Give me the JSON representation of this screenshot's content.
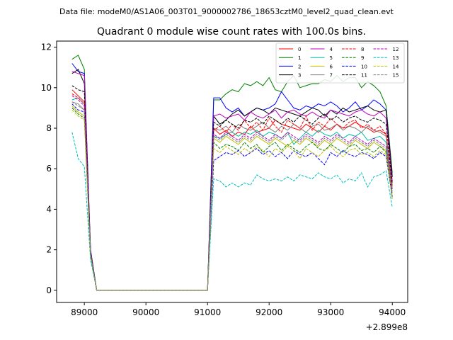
{
  "chart_data": {
    "type": "line",
    "suptitle": "Data file: modeM0/AS1A06_003T01_9000002786_18653cztM0_level2_quad_clean.evt",
    "title": "Quadrant 0 module wise count rates with 100.0s bins.",
    "xlabel": "",
    "ylabel": "",
    "x_offset_label": "+2.899e8",
    "xlim": [
      88550,
      94250
    ],
    "ylim": [
      -0.6,
      12.3
    ],
    "xticks": [
      89000,
      90000,
      91000,
      92000,
      93000,
      94000
    ],
    "yticks": [
      0,
      2,
      4,
      6,
      8,
      10,
      12
    ],
    "grid": false,
    "legend": {
      "placement": "top-right",
      "columns": 4
    },
    "x": [
      88800,
      88900,
      89000,
      89100,
      89200,
      89300,
      89400,
      89500,
      89600,
      89700,
      89800,
      89900,
      90000,
      90100,
      90200,
      90300,
      90400,
      90500,
      90600,
      90700,
      90800,
      90900,
      91000,
      91100,
      91200,
      91300,
      91400,
      91500,
      91600,
      91700,
      91800,
      91900,
      92000,
      92100,
      92200,
      92300,
      92400,
      92500,
      92600,
      92700,
      92800,
      92900,
      93000,
      93100,
      93200,
      93300,
      93400,
      93500,
      93600,
      93700,
      93800,
      93900,
      94000
    ],
    "series": [
      {
        "name": "0",
        "color": "#ff0000",
        "dash": "solid",
        "values": [
          9.9,
          9.6,
          9.3,
          1.8,
          0,
          0,
          0,
          0,
          0,
          0,
          0,
          0,
          0,
          0,
          0,
          0,
          0,
          0,
          0,
          0,
          0,
          0,
          0,
          8.0,
          7.7,
          7.9,
          7.6,
          7.8,
          7.7,
          8.1,
          7.8,
          7.9,
          8.0,
          8.4,
          8.2,
          8.1,
          8.0,
          7.9,
          8.2,
          8.0,
          7.8,
          8.1,
          7.9,
          8.2,
          8.0,
          8.1,
          8.3,
          8.1,
          8.0,
          7.8,
          7.9,
          7.7,
          5.0
        ]
      },
      {
        "name": "1",
        "color": "#008000",
        "dash": "solid",
        "values": [
          11.4,
          11.6,
          10.9,
          2.0,
          0,
          0,
          0,
          0,
          0,
          0,
          0,
          0,
          0,
          0,
          0,
          0,
          0,
          0,
          0,
          0,
          0,
          0,
          0,
          9.4,
          9.4,
          9.7,
          9.9,
          9.8,
          10.2,
          10.1,
          10.3,
          10.1,
          10.5,
          9.9,
          9.8,
          10.3,
          10.6,
          10.0,
          10.1,
          10.2,
          10.2,
          10.4,
          10.3,
          10.6,
          10.3,
          10.5,
          10.5,
          10.0,
          10.3,
          10.1,
          9.8,
          9.1,
          5.8
        ]
      },
      {
        "name": "2",
        "color": "#0000ff",
        "dash": "solid",
        "values": [
          11.2,
          10.8,
          10.7,
          2.0,
          0,
          0,
          0,
          0,
          0,
          0,
          0,
          0,
          0,
          0,
          0,
          0,
          0,
          0,
          0,
          0,
          0,
          0,
          0,
          9.5,
          9.5,
          9.0,
          8.8,
          9.0,
          8.6,
          8.8,
          9.0,
          8.9,
          9.0,
          9.2,
          9.8,
          9.4,
          9.0,
          8.9,
          9.1,
          9.0,
          9.2,
          9.1,
          9.3,
          9.1,
          8.8,
          9.0,
          9.3,
          8.9,
          9.1,
          9.4,
          9.2,
          8.9,
          5.6
        ]
      },
      {
        "name": "3",
        "color": "#000000",
        "dash": "solid",
        "values": [
          10.7,
          10.9,
          10.2,
          1.9,
          0,
          0,
          0,
          0,
          0,
          0,
          0,
          0,
          0,
          0,
          0,
          0,
          0,
          0,
          0,
          0,
          0,
          0,
          0,
          8.6,
          8.2,
          8.4,
          8.7,
          8.9,
          8.6,
          8.8,
          9.0,
          8.9,
          8.7,
          9.0,
          8.9,
          8.8,
          8.7,
          8.6,
          8.8,
          9.0,
          8.9,
          8.6,
          8.9,
          8.7,
          9.0,
          8.8,
          8.9,
          9.0,
          9.1,
          8.9,
          8.8,
          8.9,
          5.6
        ]
      },
      {
        "name": "4",
        "color": "#bf00bf",
        "dash": "solid",
        "values": [
          10.8,
          10.7,
          10.6,
          1.9,
          0,
          0,
          0,
          0,
          0,
          0,
          0,
          0,
          0,
          0,
          0,
          0,
          0,
          0,
          0,
          0,
          0,
          0,
          0,
          8.6,
          8.7,
          8.5,
          8.6,
          8.7,
          8.4,
          8.8,
          8.6,
          8.5,
          8.7,
          8.9,
          8.5,
          8.8,
          8.9,
          8.7,
          8.6,
          8.8,
          8.6,
          8.5,
          8.9,
          8.8,
          8.7,
          8.6,
          8.8,
          8.9,
          8.7,
          8.6,
          8.8,
          8.5,
          5.4
        ]
      },
      {
        "name": "5",
        "color": "#00bfa0",
        "dash": "solid",
        "values": [
          9.4,
          9.5,
          9.2,
          1.8,
          0,
          0,
          0,
          0,
          0,
          0,
          0,
          0,
          0,
          0,
          0,
          0,
          0,
          0,
          0,
          0,
          0,
          0,
          0,
          7.6,
          7.5,
          7.7,
          7.8,
          7.6,
          7.8,
          7.7,
          7.9,
          7.6,
          7.8,
          7.7,
          7.5,
          7.8,
          7.2,
          7.5,
          7.8,
          7.6,
          7.9,
          7.7,
          7.6,
          7.8,
          7.5,
          7.7,
          7.6,
          7.8,
          7.4,
          7.5,
          7.6,
          7.3,
          5.0
        ]
      },
      {
        "name": "6",
        "color": "#bfbf00",
        "dash": "solid",
        "values": [
          9.1,
          8.8,
          8.6,
          1.7,
          0,
          0,
          0,
          0,
          0,
          0,
          0,
          0,
          0,
          0,
          0,
          0,
          0,
          0,
          0,
          0,
          0,
          0,
          0,
          7.5,
          7.3,
          7.6,
          7.4,
          7.2,
          7.5,
          7.3,
          7.6,
          7.4,
          7.2,
          7.5,
          7.3,
          7.1,
          7.4,
          7.2,
          7.5,
          7.3,
          7.1,
          7.4,
          7.2,
          7.5,
          7.3,
          7.1,
          7.4,
          7.2,
          7.0,
          7.3,
          7.1,
          6.9,
          4.8
        ]
      },
      {
        "name": "7",
        "color": "#808080",
        "dash": "solid",
        "values": [
          9.3,
          9.2,
          8.9,
          1.8,
          0,
          0,
          0,
          0,
          0,
          0,
          0,
          0,
          0,
          0,
          0,
          0,
          0,
          0,
          0,
          0,
          0,
          0,
          0,
          8.0,
          7.9,
          8.1,
          7.8,
          8.2,
          8.0,
          7.9,
          8.1,
          8.3,
          8.0,
          7.8,
          8.1,
          7.9,
          8.2,
          8.0,
          7.8,
          8.1,
          8.2,
          7.9,
          8.0,
          8.2,
          7.9,
          8.1,
          8.0,
          7.8,
          8.1,
          7.9,
          7.8,
          7.6,
          5.2
        ]
      },
      {
        "name": "8",
        "color": "#ff0000",
        "dash": "dashed",
        "values": [
          9.7,
          9.5,
          9.2,
          1.8,
          0,
          0,
          0,
          0,
          0,
          0,
          0,
          0,
          0,
          0,
          0,
          0,
          0,
          0,
          0,
          0,
          0,
          0,
          0,
          7.9,
          8.1,
          7.8,
          8.2,
          7.9,
          8.4,
          8.0,
          8.3,
          7.9,
          8.5,
          8.1,
          7.8,
          8.4,
          8.2,
          8.0,
          8.6,
          7.9,
          8.3,
          8.1,
          8.5,
          8.2,
          8.0,
          8.3,
          8.4,
          8.0,
          8.2,
          7.9,
          8.1,
          7.7,
          5.1
        ]
      },
      {
        "name": "9",
        "color": "#008000",
        "dash": "dashed",
        "values": [
          9.0,
          8.7,
          8.5,
          1.7,
          0,
          0,
          0,
          0,
          0,
          0,
          0,
          0,
          0,
          0,
          0,
          0,
          0,
          0,
          0,
          0,
          0,
          0,
          0,
          7.3,
          7.0,
          7.2,
          7.1,
          6.9,
          7.3,
          7.0,
          7.2,
          6.8,
          7.1,
          7.3,
          6.9,
          7.2,
          7.0,
          6.8,
          7.1,
          7.3,
          7.0,
          6.9,
          7.2,
          7.0,
          6.8,
          7.1,
          7.2,
          6.9,
          7.0,
          6.8,
          7.1,
          6.8,
          4.6
        ]
      },
      {
        "name": "10",
        "color": "#0000ff",
        "dash": "dashed",
        "values": [
          9.2,
          8.9,
          8.8,
          1.7,
          0,
          0,
          0,
          0,
          0,
          0,
          0,
          0,
          0,
          0,
          0,
          0,
          0,
          0,
          0,
          0,
          0,
          0,
          0,
          6.4,
          6.6,
          6.8,
          6.7,
          6.9,
          6.6,
          6.8,
          7.0,
          6.7,
          6.9,
          6.6,
          6.8,
          6.5,
          6.9,
          6.7,
          6.6,
          6.8,
          6.5,
          6.2,
          6.8,
          6.6,
          6.9,
          6.7,
          6.6,
          6.8,
          6.7,
          6.5,
          6.8,
          6.6,
          4.6
        ]
      },
      {
        "name": "11",
        "color": "#000000",
        "dash": "dashed",
        "values": [
          10.1,
          9.9,
          9.8,
          1.9,
          0,
          0,
          0,
          0,
          0,
          0,
          0,
          0,
          0,
          0,
          0,
          0,
          0,
          0,
          0,
          0,
          0,
          0,
          0,
          8.3,
          8.1,
          8.4,
          8.2,
          8.0,
          8.4,
          8.3,
          8.5,
          8.2,
          8.6,
          8.4,
          8.2,
          8.5,
          8.3,
          8.6,
          8.4,
          8.2,
          8.5,
          8.7,
          8.4,
          8.6,
          8.3,
          8.5,
          8.6,
          8.4,
          8.3,
          8.5,
          8.4,
          8.2,
          5.3
        ]
      },
      {
        "name": "12",
        "color": "#bf00bf",
        "dash": "dashed",
        "values": [
          9.6,
          9.4,
          9.1,
          1.8,
          0,
          0,
          0,
          0,
          0,
          0,
          0,
          0,
          0,
          0,
          0,
          0,
          0,
          0,
          0,
          0,
          0,
          0,
          0,
          7.7,
          7.5,
          7.8,
          7.6,
          7.4,
          7.7,
          7.5,
          7.8,
          7.6,
          7.4,
          7.7,
          7.5,
          7.8,
          7.6,
          7.4,
          7.7,
          7.5,
          7.3,
          7.6,
          7.4,
          7.7,
          7.5,
          7.3,
          7.6,
          7.4,
          7.2,
          7.5,
          7.3,
          7.1,
          4.9
        ]
      },
      {
        "name": "13",
        "color": "#00bfbf",
        "dash": "dashed",
        "values": [
          7.8,
          6.5,
          6.1,
          1.5,
          0,
          0,
          0,
          0,
          0,
          0,
          0,
          0,
          0,
          0,
          0,
          0,
          0,
          0,
          0,
          0,
          0,
          0,
          0,
          5.5,
          5.4,
          5.1,
          5.3,
          5.1,
          5.3,
          5.2,
          5.7,
          5.5,
          5.4,
          5.5,
          5.4,
          5.6,
          5.4,
          5.7,
          5.6,
          5.5,
          5.8,
          5.6,
          5.5,
          5.7,
          5.3,
          5.5,
          5.4,
          5.8,
          5.1,
          5.6,
          5.7,
          5.9,
          4.1
        ]
      },
      {
        "name": "14",
        "color": "#bfbf00",
        "dash": "dashed",
        "values": [
          8.9,
          8.6,
          8.4,
          1.7,
          0,
          0,
          0,
          0,
          0,
          0,
          0,
          0,
          0,
          0,
          0,
          0,
          0,
          0,
          0,
          0,
          0,
          0,
          0,
          7.0,
          6.8,
          7.1,
          6.9,
          6.7,
          7.0,
          6.8,
          7.1,
          6.9,
          6.6,
          7.0,
          6.8,
          7.1,
          6.9,
          6.5,
          7.0,
          6.8,
          6.6,
          6.9,
          7.1,
          6.8,
          6.6,
          6.9,
          7.0,
          6.7,
          6.8,
          6.6,
          6.9,
          6.7,
          4.5
        ]
      },
      {
        "name": "15",
        "color": "#808080",
        "dash": "dashed",
        "values": [
          9.3,
          9.1,
          8.9,
          1.8,
          0,
          0,
          0,
          0,
          0,
          0,
          0,
          0,
          0,
          0,
          0,
          0,
          0,
          0,
          0,
          0,
          0,
          0,
          0,
          7.6,
          7.4,
          7.7,
          7.5,
          7.3,
          7.6,
          7.4,
          7.7,
          7.5,
          7.3,
          7.6,
          7.4,
          7.7,
          7.5,
          7.3,
          7.6,
          7.4,
          7.2,
          7.5,
          7.3,
          7.6,
          7.4,
          7.2,
          7.5,
          7.3,
          7.1,
          7.4,
          7.2,
          7.0,
          4.8
        ]
      }
    ]
  }
}
